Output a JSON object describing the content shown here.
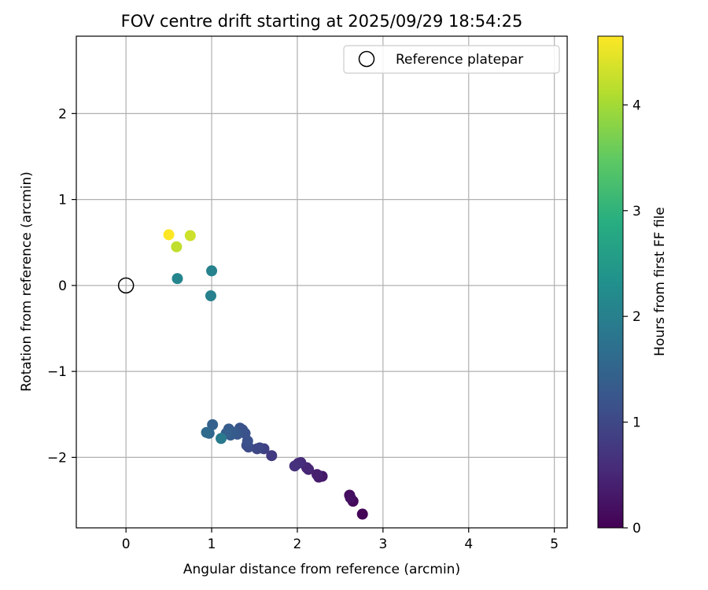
{
  "chart_data": {
    "type": "scatter",
    "title": "FOV centre drift starting at 2025/09/29 18:54:25",
    "xlabel": "Angular distance from reference (arcmin)",
    "ylabel": "Rotation from reference (arcmin)",
    "xlim": [
      -0.58,
      5.15
    ],
    "ylim": [
      -2.82,
      2.9
    ],
    "xticks": [
      0,
      1,
      2,
      3,
      4,
      5
    ],
    "xtick_labels": [
      "0",
      "1",
      "2",
      "3",
      "4",
      "5"
    ],
    "yticks": [
      -2,
      -1,
      0,
      1,
      2
    ],
    "ytick_labels": [
      "−2",
      "−1",
      "0",
      "1",
      "2"
    ],
    "grid": true,
    "legend": {
      "position": "top-right",
      "entries": [
        {
          "label": "Reference platepar",
          "marker": "open-circle"
        }
      ]
    },
    "reference_point": {
      "label": "Reference platepar",
      "x": 0,
      "y": 0
    },
    "colorbar": {
      "label": "Hours from first FF file",
      "colormap": "viridis",
      "range": [
        0,
        4.65
      ],
      "ticks": [
        0,
        1,
        2,
        3,
        4
      ],
      "tick_labels": [
        "0",
        "1",
        "2",
        "3",
        "4"
      ]
    },
    "series": [
      {
        "name": "FOV centre drift",
        "points": [
          {
            "x": 2.76,
            "y": -2.66,
            "c": 0.05
          },
          {
            "x": 2.65,
            "y": -2.51,
            "c": 0.1
          },
          {
            "x": 2.61,
            "y": -2.44,
            "c": 0.15
          },
          {
            "x": 2.62,
            "y": -2.47,
            "c": 0.2
          },
          {
            "x": 2.29,
            "y": -2.22,
            "c": 0.3
          },
          {
            "x": 2.25,
            "y": -2.23,
            "c": 0.35
          },
          {
            "x": 2.23,
            "y": -2.2,
            "c": 0.4
          },
          {
            "x": 2.13,
            "y": -2.14,
            "c": 0.45
          },
          {
            "x": 2.11,
            "y": -2.12,
            "c": 0.5
          },
          {
            "x": 2.04,
            "y": -2.06,
            "c": 0.55
          },
          {
            "x": 2.01,
            "y": -2.07,
            "c": 0.6
          },
          {
            "x": 1.97,
            "y": -2.1,
            "c": 0.65
          },
          {
            "x": 1.7,
            "y": -1.98,
            "c": 0.8
          },
          {
            "x": 1.61,
            "y": -1.9,
            "c": 0.9
          },
          {
            "x": 1.56,
            "y": -1.89,
            "c": 0.95
          },
          {
            "x": 1.53,
            "y": -1.9,
            "c": 1.0
          },
          {
            "x": 1.43,
            "y": -1.88,
            "c": 1.05
          },
          {
            "x": 1.41,
            "y": -1.86,
            "c": 1.1
          },
          {
            "x": 1.42,
            "y": -1.81,
            "c": 1.15
          },
          {
            "x": 1.39,
            "y": -1.72,
            "c": 1.15
          },
          {
            "x": 1.36,
            "y": -1.68,
            "c": 1.2
          },
          {
            "x": 1.33,
            "y": -1.66,
            "c": 1.2
          },
          {
            "x": 1.3,
            "y": -1.73,
            "c": 1.25
          },
          {
            "x": 1.26,
            "y": -1.71,
            "c": 1.3
          },
          {
            "x": 1.22,
            "y": -1.74,
            "c": 1.35
          },
          {
            "x": 1.2,
            "y": -1.67,
            "c": 1.35
          },
          {
            "x": 1.17,
            "y": -1.72,
            "c": 1.4
          },
          {
            "x": 1.01,
            "y": -1.62,
            "c": 1.45
          },
          {
            "x": 0.97,
            "y": -1.72,
            "c": 1.55
          },
          {
            "x": 0.94,
            "y": -1.71,
            "c": 1.6
          },
          {
            "x": 1.11,
            "y": -1.78,
            "c": 1.9
          },
          {
            "x": 0.99,
            "y": -0.12,
            "c": 2.0
          },
          {
            "x": 1.0,
            "y": 0.17,
            "c": 2.05
          },
          {
            "x": 0.6,
            "y": 0.08,
            "c": 2.1
          },
          {
            "x": 0.59,
            "y": 0.45,
            "c": 4.2
          },
          {
            "x": 0.75,
            "y": 0.58,
            "c": 4.3
          },
          {
            "x": 0.5,
            "y": 0.59,
            "c": 4.65
          }
        ]
      }
    ]
  }
}
